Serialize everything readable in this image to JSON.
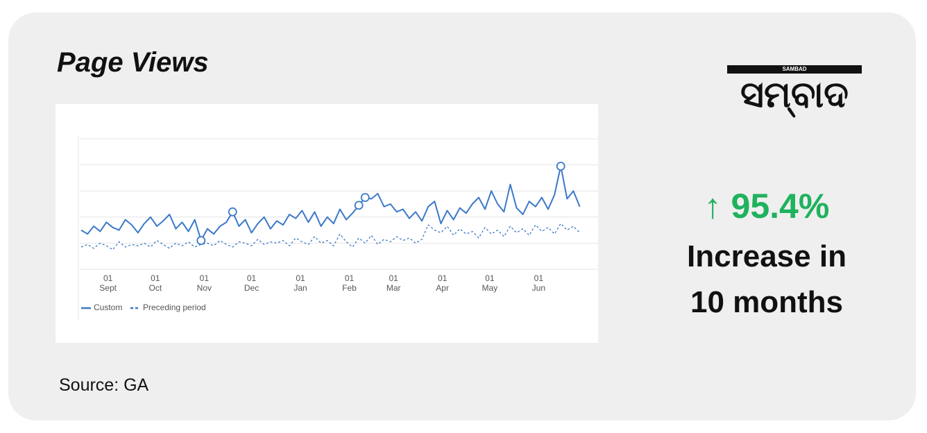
{
  "title": "Page Views",
  "source": "Source: GA",
  "logo": {
    "top": "SAMBAD",
    "main": "ସମ୍ବାଦ"
  },
  "stat": {
    "value": "↑ 95.4%",
    "line1": "Increase in",
    "line2": "10 months"
  },
  "chart_data": {
    "type": "line",
    "xlim": [
      0,
      318
    ],
    "ylim": [
      0,
      100
    ],
    "yticks": [
      0,
      20,
      40,
      60,
      80,
      100
    ],
    "grid": true,
    "xticks": [
      {
        "value": 17,
        "label": [
          "01",
          "Sept"
        ]
      },
      {
        "value": 47,
        "label": [
          "01",
          "Oct"
        ]
      },
      {
        "value": 78,
        "label": [
          "01",
          "Nov"
        ]
      },
      {
        "value": 108,
        "label": [
          "01",
          "Dec"
        ]
      },
      {
        "value": 139,
        "label": [
          "01",
          "Jan"
        ]
      },
      {
        "value": 170,
        "label": [
          "01",
          "Feb"
        ]
      },
      {
        "value": 198,
        "label": [
          "01",
          "Mar"
        ]
      },
      {
        "value": 229,
        "label": [
          "01",
          "Apr"
        ]
      },
      {
        "value": 259,
        "label": [
          "01",
          "May"
        ]
      },
      {
        "value": 290,
        "label": [
          "01",
          "Jun"
        ]
      }
    ],
    "x": [
      0,
      4,
      8,
      12,
      16,
      20,
      24,
      28,
      32,
      36,
      40,
      44,
      48,
      52,
      56,
      60,
      64,
      68,
      72,
      76,
      80,
      84,
      88,
      92,
      96,
      100,
      104,
      108,
      112,
      116,
      120,
      124,
      128,
      132,
      136,
      140,
      144,
      148,
      152,
      156,
      160,
      164,
      168,
      172,
      176,
      180,
      184,
      188,
      192,
      196,
      200,
      204,
      208,
      212,
      216,
      220,
      224,
      228,
      232,
      236,
      240,
      244,
      248,
      252,
      256,
      260,
      264,
      268,
      272,
      276,
      280,
      284,
      288,
      292,
      296,
      300,
      304,
      308,
      312,
      316
    ],
    "highlight_points": [
      19,
      24,
      44,
      45,
      76
    ],
    "series": [
      {
        "name": "Custom",
        "color": "#3b78c8",
        "dash": false,
        "values": [
          30,
          27,
          33,
          29,
          36,
          32,
          30,
          38,
          34,
          28,
          35,
          40,
          33,
          37,
          42,
          31,
          36,
          29,
          38,
          22,
          31,
          27,
          33,
          36,
          44,
          33,
          38,
          28,
          35,
          40,
          31,
          37,
          34,
          42,
          39,
          45,
          36,
          44,
          33,
          40,
          35,
          46,
          38,
          43,
          49,
          55,
          54,
          58,
          48,
          50,
          44,
          46,
          39,
          44,
          37,
          48,
          52,
          35,
          45,
          38,
          47,
          43,
          50,
          55,
          46,
          60,
          50,
          44,
          65,
          47,
          42,
          52,
          48,
          55,
          46,
          57,
          79,
          54,
          60,
          48
        ]
      },
      {
        "name": "Preceding period",
        "color": "#3b78c8",
        "dash": true,
        "values": [
          17,
          19,
          16,
          20,
          18,
          15,
          21,
          17,
          19,
          18,
          20,
          17,
          22,
          19,
          16,
          20,
          18,
          21,
          17,
          19,
          20,
          18,
          22,
          19,
          17,
          21,
          20,
          18,
          23,
          19,
          21,
          20,
          22,
          18,
          24,
          21,
          19,
          25,
          20,
          22,
          18,
          27,
          21,
          17,
          24,
          20,
          26,
          19,
          23,
          21,
          25,
          22,
          24,
          20,
          23,
          34,
          30,
          28,
          33,
          26,
          31,
          27,
          29,
          24,
          32,
          27,
          30,
          25,
          33,
          28,
          31,
          26,
          34,
          29,
          32,
          27,
          35,
          30,
          33,
          28
        ]
      }
    ]
  }
}
